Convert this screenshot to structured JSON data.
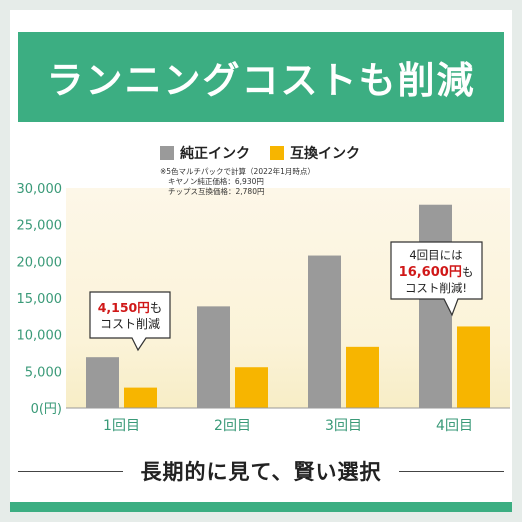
{
  "banner": {
    "title": "ランニングコストも削減"
  },
  "footer": {
    "text": "長期的に見て、賢い選択"
  },
  "notes": {
    "line1": "※5色マルチパックで計算（2022年1月時点）",
    "line2": "キヤノン純正価格：6,930円",
    "line3": "チップス互換価格：2,780円"
  },
  "callouts": {
    "left": {
      "amount": "4,150円",
      "suffix1": "も",
      "line2": "コスト削減"
    },
    "right": {
      "line1": "4回目には",
      "amount": "16,600円",
      "suffix2": "も",
      "line3": "コスト削減!"
    }
  },
  "colors": {
    "genuine": "#9a9a9a",
    "compatible": "#f7b500",
    "accent": "#3cae82",
    "highlight": "#d01818"
  },
  "chart_data": {
    "type": "bar",
    "categories": [
      "1回目",
      "2回目",
      "3回目",
      "4回目"
    ],
    "series": [
      {
        "name": "純正インク",
        "values": [
          6930,
          13860,
          20790,
          27720
        ]
      },
      {
        "name": "互換インク",
        "values": [
          2780,
          5560,
          8340,
          11120
        ]
      }
    ],
    "ylim": [
      0,
      30000
    ],
    "yticks": [
      "0(円)",
      "5,000",
      "10,000",
      "15,000",
      "20,000",
      "25,000",
      "30,000"
    ],
    "ytick_values": [
      0,
      5000,
      10000,
      15000,
      20000,
      25000,
      30000
    ],
    "legend_position": "top-center",
    "grid": false
  }
}
